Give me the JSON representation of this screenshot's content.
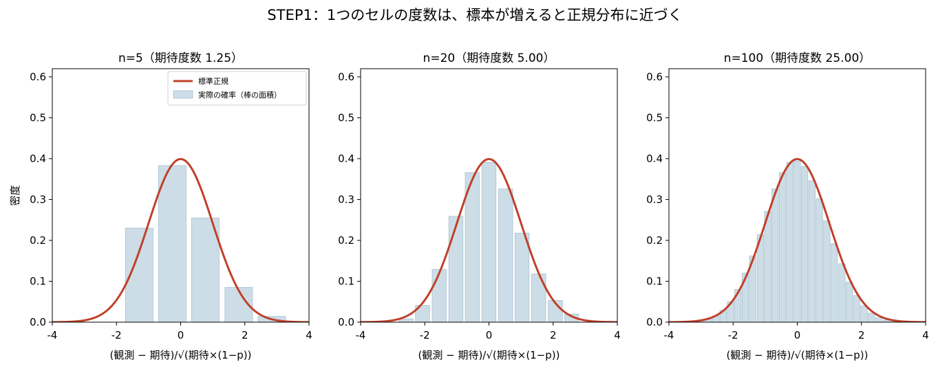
{
  "figure_title": "STEP1：1つのセルの度数は、標本が増えると正規分布に近づく",
  "colors": {
    "normal_curve": "#c0402a",
    "bar_fill": "#cddde7",
    "bar_edge": "#a9c0cf"
  },
  "legend": {
    "normal_label": "標準正規",
    "bars_label": "実際の確率（棒の面積）"
  },
  "chart_data": [
    {
      "type": "bar",
      "title": "n=5（期待度数 1.25）",
      "xlabel": "(観測 − 期待)/√(期待×(1−p))",
      "ylabel": "密度",
      "xlim": [
        -4,
        4
      ],
      "ylim": [
        0,
        0.62
      ],
      "xticks": [
        -4,
        -2,
        0,
        2,
        4
      ],
      "yticks": [
        0.0,
        0.1,
        0.2,
        0.3,
        0.4,
        0.5,
        0.6
      ],
      "bar_width": 0.86,
      "x": [
        -1.29,
        -0.26,
        0.77,
        1.81,
        2.84
      ],
      "values": [
        0.23,
        0.383,
        0.255,
        0.085,
        0.014
      ],
      "curve": "standard normal pdf",
      "legend_position": "upper right"
    },
    {
      "type": "bar",
      "title": "n=20（期待度数 5.00）",
      "xlabel": "(観測 − 期待)/√(期待×(1−p))",
      "ylabel": "",
      "xlim": [
        -4,
        4
      ],
      "ylim": [
        0,
        0.62
      ],
      "xticks": [
        -4,
        -2,
        0,
        2,
        4
      ],
      "yticks": [
        0.0,
        0.1,
        0.2,
        0.3,
        0.4,
        0.5,
        0.6
      ],
      "bar_width": 0.44,
      "x": [
        -2.58,
        -2.07,
        -1.55,
        -1.03,
        -0.52,
        0.0,
        0.52,
        1.03,
        1.55,
        2.07,
        2.58
      ],
      "values": [
        0.008,
        0.041,
        0.129,
        0.259,
        0.366,
        0.391,
        0.326,
        0.218,
        0.118,
        0.053,
        0.02
      ],
      "curve": "standard normal pdf"
    },
    {
      "type": "bar",
      "title": "n=100（期待度数 25.00）",
      "xlabel": "(観測 − 期待)/√(期待×(1−p))",
      "ylabel": "",
      "xlim": [
        -4,
        4
      ],
      "ylim": [
        0,
        0.62
      ],
      "xticks": [
        -4,
        -2,
        0,
        2,
        4
      ],
      "yticks": [
        0.0,
        0.1,
        0.2,
        0.3,
        0.4,
        0.5,
        0.6
      ],
      "bar_width": 0.2,
      "x": [
        -3.23,
        -3.0,
        -2.77,
        -2.54,
        -2.31,
        -2.08,
        -1.85,
        -1.62,
        -1.39,
        -1.15,
        -0.92,
        -0.69,
        -0.46,
        -0.23,
        0.0,
        0.23,
        0.46,
        0.69,
        0.92,
        1.15,
        1.39,
        1.62,
        1.85,
        2.08,
        2.31,
        2.54,
        2.77,
        3.0,
        3.23
      ],
      "values": [
        0.001,
        0.003,
        0.007,
        0.015,
        0.029,
        0.05,
        0.08,
        0.12,
        0.162,
        0.214,
        0.271,
        0.326,
        0.366,
        0.391,
        0.394,
        0.381,
        0.346,
        0.302,
        0.248,
        0.192,
        0.143,
        0.098,
        0.065,
        0.04,
        0.022,
        0.011,
        0.005,
        0.002,
        0.001
      ],
      "curve": "standard normal pdf"
    }
  ]
}
